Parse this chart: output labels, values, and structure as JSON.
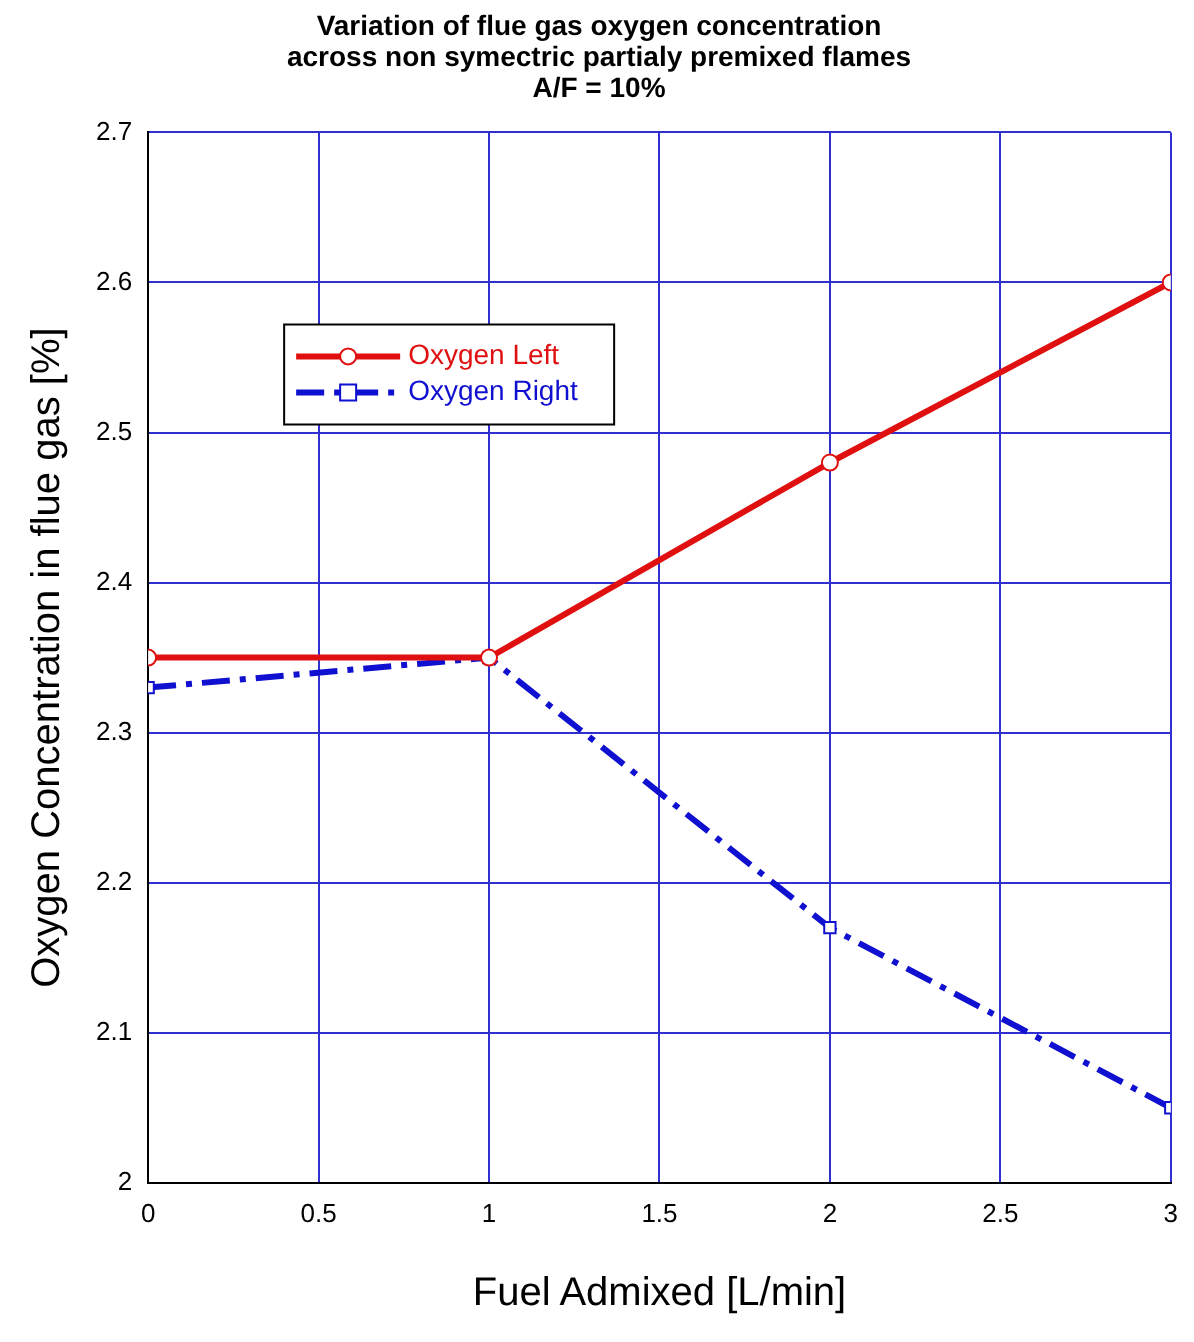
{
  "chart_data": {
    "type": "line",
    "title": [
      "Variation of flue gas oxygen concentration",
      "across non symectric partialy premixed flames",
      "A/F = 10%"
    ],
    "xlabel": "Fuel Admixed [L/min]",
    "ylabel": "Oxygen Concentration in flue gas [%]",
    "x": [
      0,
      1,
      2,
      3
    ],
    "series": [
      {
        "name": "Oxygen Left",
        "color": "#e01010",
        "values": [
          2.35,
          2.35,
          2.48,
          2.6
        ],
        "marker": "circle",
        "line_style": "solid"
      },
      {
        "name": "Oxygen Right",
        "color": "#1010d0",
        "values": [
          2.33,
          2.35,
          2.17,
          2.05
        ],
        "marker": "square",
        "line_style": "dashed"
      }
    ],
    "xlim": [
      0,
      3
    ],
    "xticks": [
      0,
      0.5,
      1,
      1.5,
      2,
      2.5,
      3
    ],
    "ylim": [
      2,
      2.7
    ],
    "yticks": [
      2,
      2.1,
      2.2,
      2.3,
      2.4,
      2.5,
      2.6,
      2.7
    ],
    "grid": true,
    "legend": "top left"
  }
}
